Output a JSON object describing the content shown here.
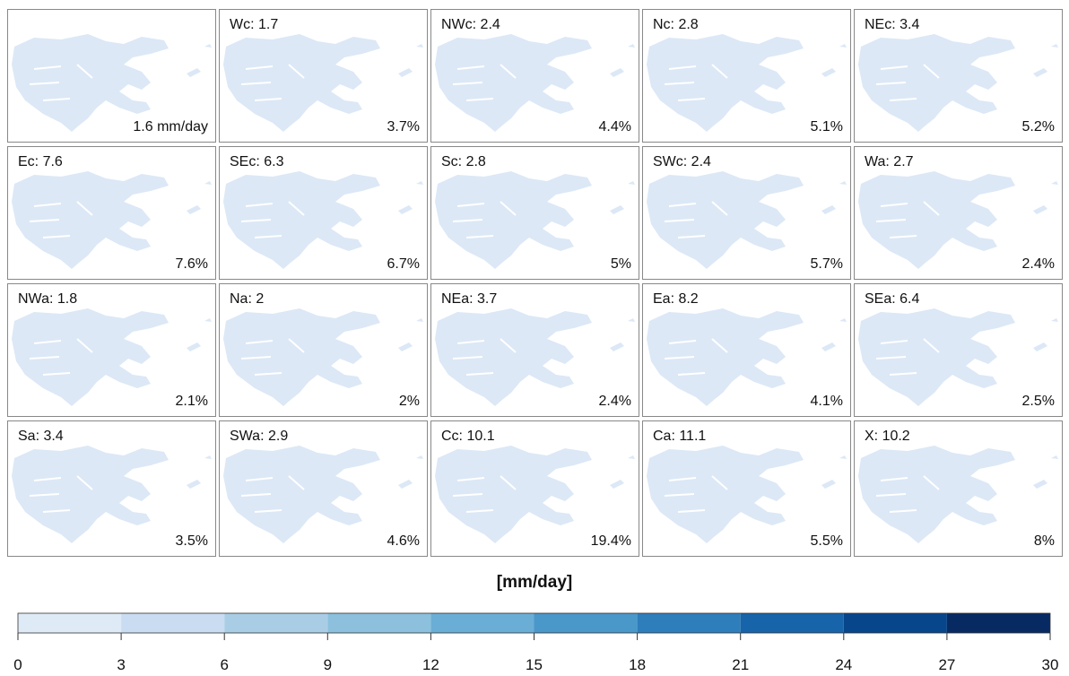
{
  "panels": [
    {
      "value": "1.6 mm/day"
    },
    {
      "label": "Wc: 1.7",
      "value": "3.7%"
    },
    {
      "label": "NWc: 2.4",
      "value": "4.4%"
    },
    {
      "label": "Nc: 2.8",
      "value": "5.1%"
    },
    {
      "label": "NEc: 3.4",
      "value": "5.2%"
    },
    {
      "label": "Ec: 7.6",
      "value": "7.6%"
    },
    {
      "label": "SEc: 6.3",
      "value": "6.7%"
    },
    {
      "label": "Sc: 2.8",
      "value": "5%"
    },
    {
      "label": "SWc: 2.4",
      "value": "5.7%"
    },
    {
      "label": "Wa: 2.7",
      "value": "2.4%"
    },
    {
      "label": "NWa: 1.8",
      "value": "2.1%"
    },
    {
      "label": "Na: 2",
      "value": "2%"
    },
    {
      "label": "NEa: 3.7",
      "value": "2.4%"
    },
    {
      "label": "Ea: 8.2",
      "value": "4.1%"
    },
    {
      "label": "SEa: 6.4",
      "value": "2.5%"
    },
    {
      "label": "Sa: 3.4",
      "value": "3.5%"
    },
    {
      "label": "SWa: 2.9",
      "value": "4.6%"
    },
    {
      "label": "Cc: 10.1",
      "value": "19.4%"
    },
    {
      "label": "Ca: 11.1",
      "value": "5.5%"
    },
    {
      "label": "X: 10.2",
      "value": "8%"
    }
  ],
  "colorbar": {
    "title": "[mm/day]",
    "ticks": [
      0,
      3,
      6,
      9,
      12,
      15,
      18,
      21,
      24,
      27,
      30
    ],
    "colors": [
      "#dfeaf7",
      "#c9dcf1",
      "#aacde6",
      "#8cc0dd",
      "#6aaed6",
      "#4a97c9",
      "#2e7ebc",
      "#1764ab",
      "#08468b",
      "#082a63"
    ]
  }
}
